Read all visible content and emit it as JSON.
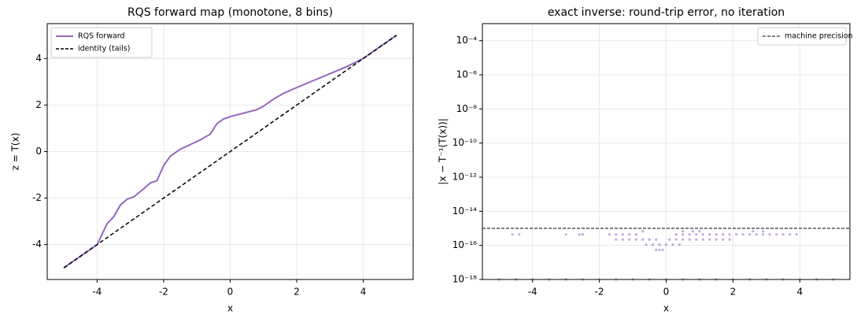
{
  "chart_data": [
    {
      "type": "line",
      "title": "RQS forward map (monotone, 8 bins)",
      "xlabel": "x",
      "ylabel": "z = T(x)",
      "xlim": [
        -5.5,
        5.5
      ],
      "ylim": [
        -5.5,
        5.5
      ],
      "xticks": [
        -4,
        -2,
        0,
        2,
        4
      ],
      "yticks": [
        -4,
        -2,
        0,
        2,
        4
      ],
      "grid": true,
      "legend": "upper left",
      "series": [
        {
          "name": "RQS forward",
          "color": "#9467bd",
          "dash": false,
          "x": [
            -5,
            -4.5,
            -4,
            -3.9,
            -3.7,
            -3.5,
            -3.3,
            -3.1,
            -2.9,
            -2.6,
            -2.4,
            -2.2,
            -2.0,
            -1.8,
            -1.5,
            -1.2,
            -0.9,
            -0.6,
            -0.4,
            -0.2,
            0,
            0.4,
            0.8,
            1.0,
            1.3,
            1.6,
            2.0,
            2.5,
            3.0,
            3.5,
            4.0,
            4.5,
            5.0
          ],
          "values": [
            -5,
            -4.5,
            -4,
            -3.7,
            -3.1,
            -2.8,
            -2.3,
            -2.05,
            -1.95,
            -1.6,
            -1.35,
            -1.25,
            -0.6,
            -0.2,
            0.1,
            0.3,
            0.5,
            0.75,
            1.2,
            1.4,
            1.5,
            1.65,
            1.8,
            1.95,
            2.25,
            2.5,
            2.75,
            3.05,
            3.35,
            3.65,
            4.0,
            4.5,
            5.0
          ]
        },
        {
          "name": "identity (tails)",
          "color": "#000000",
          "dash": true,
          "x": [
            -5,
            5
          ],
          "values": [
            -5,
            5
          ]
        }
      ]
    },
    {
      "type": "scatter",
      "title": "exact inverse: round-trip error, no iteration",
      "xlabel": "x",
      "ylabel": "|x − T⁻¹(T(x))|",
      "xlim": [
        -5.5,
        5.5
      ],
      "ylim": [
        1e-18,
        0.001
      ],
      "log_y": true,
      "xticks": [
        -4,
        -2,
        0,
        2,
        4
      ],
      "yticks": [
        {
          "value": 1e-18,
          "label": "10⁻¹⁸"
        },
        {
          "value": 1e-16,
          "label": "10⁻¹⁶"
        },
        {
          "value": 1e-14,
          "label": "10⁻¹⁴"
        },
        {
          "value": 1e-12,
          "label": "10⁻¹²"
        },
        {
          "value": 1e-10,
          "label": "10⁻¹⁰"
        },
        {
          "value": 1e-08,
          "label": "10⁻⁸"
        },
        {
          "value": 1e-06,
          "label": "10⁻⁶"
        },
        {
          "value": 0.0001,
          "label": "10⁻⁴"
        }
      ],
      "grid": true,
      "legend": "upper right",
      "hlines": [
        {
          "name": "machine precision",
          "y": 1e-15,
          "color": "#000000",
          "dash": true
        }
      ],
      "series": [
        {
          "color": "#9467bd",
          "x": [
            -5,
            -4.5,
            -4,
            -3.5,
            -3,
            -2.5,
            -2,
            -1.5,
            -1,
            -0.5,
            0,
            0.5,
            1,
            1.5,
            2,
            2.5,
            3,
            3.5,
            4,
            4.5,
            5,
            -4.6,
            -4.4,
            -3.0,
            -2.6,
            -2.5,
            -1.7,
            -1.5,
            -1.3,
            -1.1,
            -0.9,
            0.3,
            0.5,
            0.7,
            0.9,
            1.1,
            1.3,
            1.5,
            1.7,
            1.9,
            2.1,
            2.3,
            2.5,
            2.7,
            2.9,
            3.1,
            3.3,
            3.5,
            3.7,
            3.9,
            0.5,
            0.8,
            1.0,
            2.6,
            2.9,
            -0.7,
            -1.5,
            -1.3,
            -1.1,
            -0.9,
            -0.7,
            -0.5,
            -0.3,
            0.1,
            0.3,
            0.5,
            0.7,
            0.9,
            1.1,
            1.3,
            1.5,
            1.7,
            1.9,
            -0.6,
            -0.4,
            -0.2,
            0.0,
            0.2,
            0.4,
            -0.3,
            -0.2,
            -0.1
          ],
          "values": [
            1e-18,
            1e-18,
            1e-18,
            1e-18,
            1e-18,
            1e-18,
            1e-18,
            1e-18,
            1e-18,
            1e-18,
            1e-18,
            1e-18,
            1e-18,
            1e-18,
            1e-18,
            1e-18,
            1e-18,
            1e-18,
            1e-18,
            1e-18,
            1e-18,
            4.4e-16,
            4.4e-16,
            4.4e-16,
            4.4e-16,
            4.4e-16,
            4.4e-16,
            4.4e-16,
            4.4e-16,
            4.4e-16,
            4.4e-16,
            4.4e-16,
            4.4e-16,
            4.4e-16,
            4.4e-16,
            4.4e-16,
            4.4e-16,
            4.4e-16,
            4.4e-16,
            4.4e-16,
            4.4e-16,
            4.4e-16,
            4.4e-16,
            4.4e-16,
            4.4e-16,
            4.4e-16,
            4.4e-16,
            4.4e-16,
            4.4e-16,
            4.4e-16,
            6.7e-16,
            6.7e-16,
            6.7e-16,
            6.7e-16,
            6.7e-16,
            6.7e-16,
            2.2e-16,
            2.2e-16,
            2.2e-16,
            2.2e-16,
            2.2e-16,
            2.2e-16,
            2.2e-16,
            2.2e-16,
            2.2e-16,
            2.2e-16,
            2.2e-16,
            2.2e-16,
            2.2e-16,
            2.2e-16,
            2.2e-16,
            2.2e-16,
            2.2e-16,
            1.1e-16,
            1.1e-16,
            1.1e-16,
            1.1e-16,
            1.1e-16,
            1.1e-16,
            5.5e-17,
            5.5e-17,
            5.5e-17
          ]
        }
      ]
    }
  ]
}
